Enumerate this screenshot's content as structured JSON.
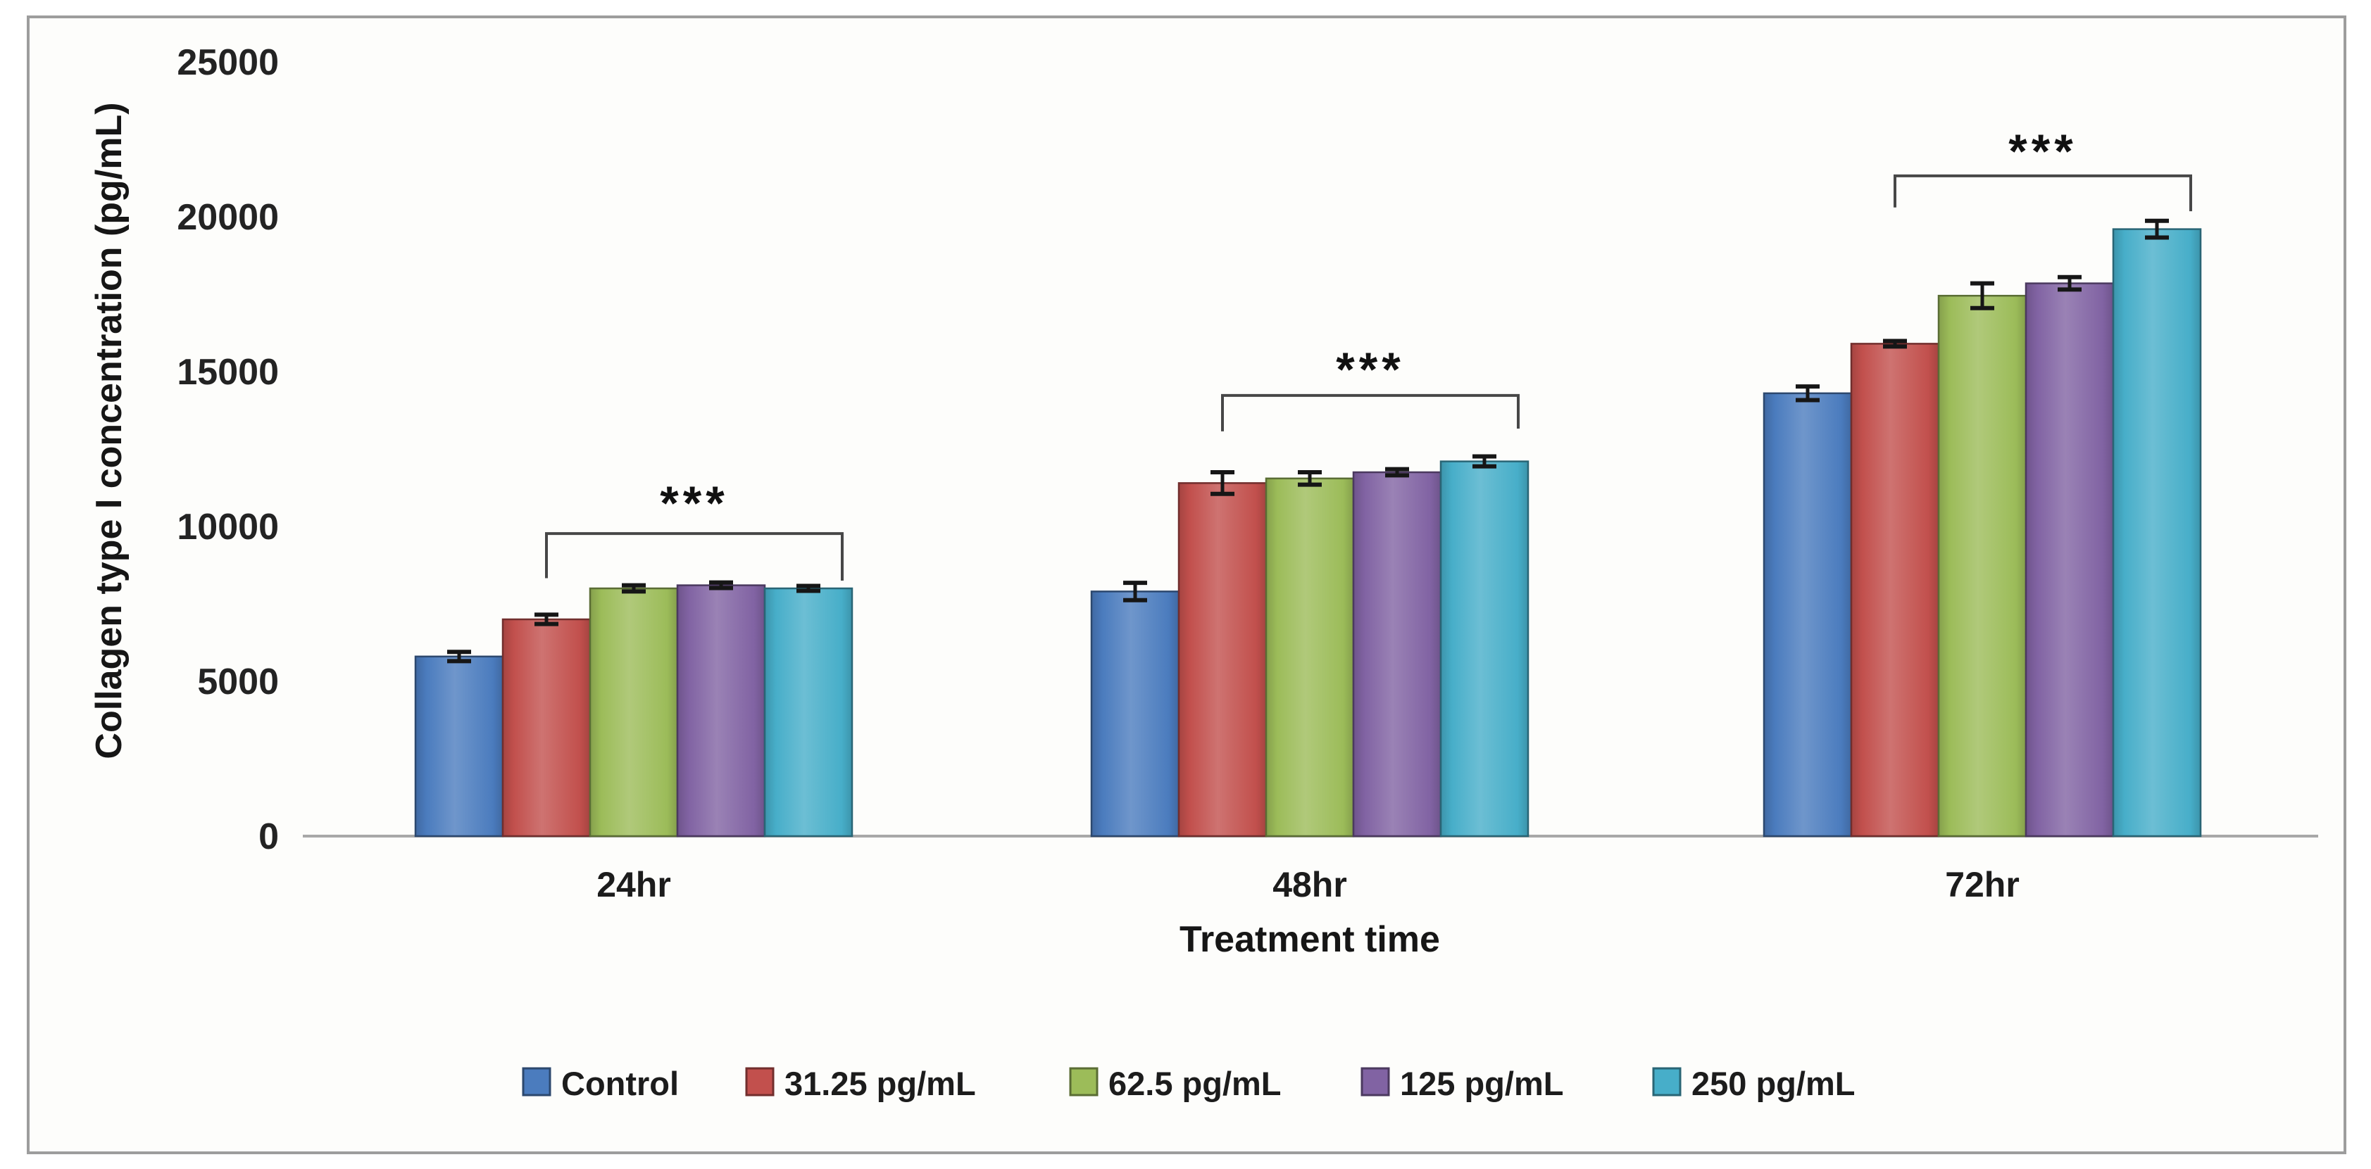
{
  "figure": {
    "background": "#ffffff",
    "inner_background": "#fdfdfb",
    "frame_border_color": "#9d9d9d",
    "axis_line_color": "#a8a8a8",
    "error_bar_color": "#161616",
    "bracket_color": "#474747"
  },
  "chart_data": {
    "type": "bar",
    "title": "",
    "xlabel": "Treatment time",
    "ylabel": "Collagen type I concentration (pg/mL)",
    "categories": [
      "24hr",
      "48hr",
      "72hr"
    ],
    "series": [
      {
        "name": "Control",
        "color": "#4b7cbe",
        "values": [
          5800,
          7900,
          14300
        ],
        "errors": [
          150,
          280,
          220
        ]
      },
      {
        "name": "31.25 pg/mL",
        "color": "#c2504d",
        "values": [
          7000,
          11400,
          15900
        ],
        "errors": [
          150,
          350,
          90
        ]
      },
      {
        "name": "62.5 pg/mL",
        "color": "#9cbc59",
        "values": [
          8000,
          11550,
          17450
        ],
        "errors": [
          100,
          200,
          400
        ]
      },
      {
        "name": "125 pg/mL",
        "color": "#8163a3",
        "values": [
          8100,
          11750,
          17850
        ],
        "errors": [
          90,
          100,
          200
        ]
      },
      {
        "name": "250 pg/mL",
        "color": "#47aec9",
        "values": [
          8000,
          12100,
          19600
        ],
        "errors": [
          80,
          160,
          270
        ]
      }
    ],
    "y_ticks": [
      0,
      5000,
      10000,
      15000,
      20000,
      25000
    ],
    "ylim": [
      0,
      25000
    ],
    "grid": false,
    "legend_position": "bottom",
    "significance_brackets": [
      {
        "category": "24hr",
        "label": "***",
        "from_series": "31.25 pg/mL",
        "to_series": "250 pg/mL",
        "line_value": 9770,
        "left_end_value": 8330,
        "right_end_value": 8250,
        "label_value": 10230
      },
      {
        "category": "48hr",
        "label": "***",
        "from_series": "31.25 pg/mL",
        "to_series": "250 pg/mL",
        "line_value": 14230,
        "left_end_value": 13070,
        "right_end_value": 13160,
        "label_value": 14550
      },
      {
        "category": "72hr",
        "label": "***",
        "from_series": "31.25 pg/mL",
        "to_series": "250 pg/mL",
        "line_value": 21320,
        "left_end_value": 20300,
        "right_end_value": 20180,
        "label_value": 21590
      }
    ]
  }
}
